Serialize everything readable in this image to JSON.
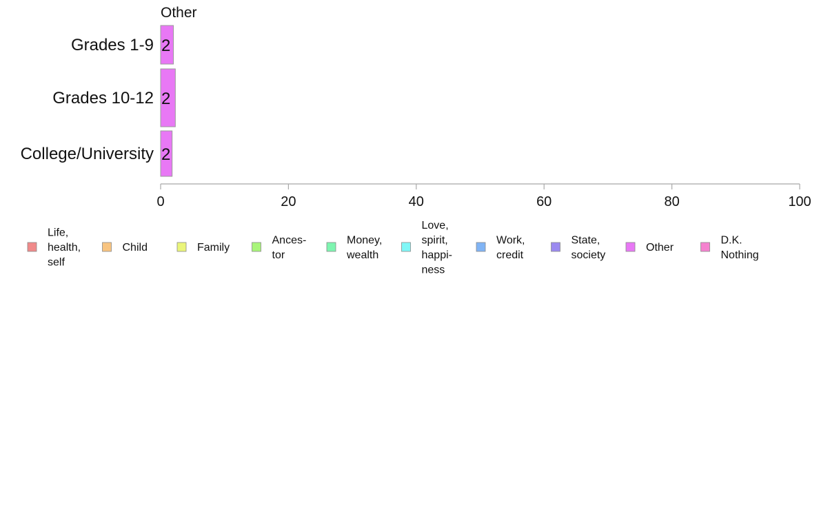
{
  "chart_data": {
    "type": "bar",
    "orientation": "horizontal",
    "panel_title": "Other",
    "categories": [
      "Grades 1-9",
      "Grades 10-12",
      "College/University"
    ],
    "series": [
      {
        "name": "Other",
        "values": [
          2,
          2.3,
          1.8
        ],
        "data_labels": [
          "2",
          "2",
          "2"
        ]
      }
    ],
    "xlim": [
      0,
      100
    ],
    "x_ticks": [
      "0",
      "20",
      "40",
      "60",
      "80",
      "100"
    ],
    "grid": false,
    "legend": {
      "placement": "bottom",
      "entries": [
        {
          "label": "Life, health, self",
          "lines": [
            "Life,",
            "health,",
            "self"
          ],
          "color": "#f08a8a"
        },
        {
          "label": "Child",
          "lines": [
            "Child"
          ],
          "color": "#f8c480"
        },
        {
          "label": "Family",
          "lines": [
            "Family"
          ],
          "color": "#eaf57a"
        },
        {
          "label": "Ancestor",
          "lines": [
            "Ances-",
            "tor"
          ],
          "color": "#a9f57a"
        },
        {
          "label": "Money, wealth",
          "lines": [
            "Money,",
            "wealth"
          ],
          "color": "#7ef5b0"
        },
        {
          "label": "Love, spirit, happiness",
          "lines": [
            "Love,",
            "spirit,",
            "happi-",
            "ness"
          ],
          "color": "#80f7f7"
        },
        {
          "label": "Work, credit",
          "lines": [
            "Work,",
            "credit"
          ],
          "color": "#80b4f5"
        },
        {
          "label": "State, society",
          "lines": [
            "State,",
            "society"
          ],
          "color": "#9b8af0"
        },
        {
          "label": "Other",
          "lines": [
            "Other"
          ],
          "color": "#e878f5"
        },
        {
          "label": "D.K. Nothing",
          "lines": [
            "D.K.",
            "Nothing"
          ],
          "color": "#f582cf"
        }
      ]
    }
  }
}
